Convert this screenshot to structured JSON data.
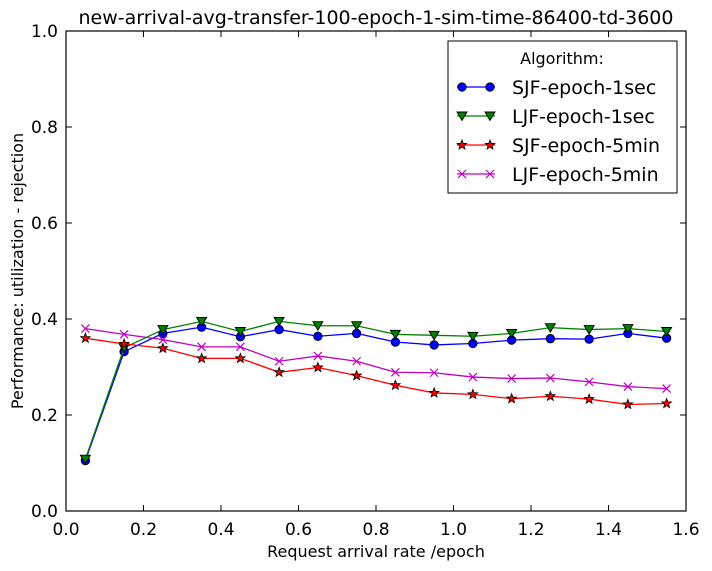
{
  "chart_data": {
    "type": "line",
    "title": "new-arrival-avg-transfer-100-epoch-1-sim-time-86400-td-3600",
    "xlabel": "Request arrival rate /epoch",
    "ylabel": "Performance: utilization - rejection",
    "xlim": [
      0.0,
      1.6
    ],
    "ylim": [
      0.0,
      1.0
    ],
    "xticks": [
      "0.0",
      "0.2",
      "0.4",
      "0.6",
      "0.8",
      "1.0",
      "1.2",
      "1.4",
      "1.6"
    ],
    "yticks": [
      "0.0",
      "0.2",
      "0.4",
      "0.6",
      "0.8",
      "1.0"
    ],
    "grid": false,
    "legend": {
      "title": "Algorithm:",
      "placement": "top-right"
    },
    "x": [
      0.05,
      0.15,
      0.25,
      0.35,
      0.45,
      0.55,
      0.65,
      0.75,
      0.85,
      0.95,
      1.05,
      1.15,
      1.25,
      1.35,
      1.45,
      1.55
    ],
    "series": [
      {
        "name": "SJF-epoch-1sec",
        "color": "#0000ff",
        "marker": "circle",
        "values": [
          0.105,
          0.332,
          0.37,
          0.383,
          0.363,
          0.378,
          0.364,
          0.37,
          0.352,
          0.346,
          0.349,
          0.356,
          0.359,
          0.358,
          0.37,
          0.36
        ]
      },
      {
        "name": "LJF-epoch-1sec",
        "color": "#007f00",
        "marker": "triangle-down",
        "values": [
          0.108,
          0.34,
          0.378,
          0.395,
          0.374,
          0.395,
          0.386,
          0.386,
          0.368,
          0.366,
          0.364,
          0.37,
          0.382,
          0.378,
          0.38,
          0.374
        ]
      },
      {
        "name": "SJF-epoch-5min",
        "color": "#ff0000",
        "marker": "star",
        "values": [
          0.36,
          0.348,
          0.339,
          0.318,
          0.318,
          0.289,
          0.299,
          0.282,
          0.262,
          0.246,
          0.243,
          0.234,
          0.239,
          0.233,
          0.222,
          0.224
        ]
      },
      {
        "name": "LJF-epoch-5min",
        "color": "#bf00bf",
        "marker": "x",
        "values": [
          0.38,
          0.368,
          0.357,
          0.342,
          0.342,
          0.312,
          0.323,
          0.312,
          0.289,
          0.288,
          0.279,
          0.276,
          0.277,
          0.269,
          0.259,
          0.255
        ]
      }
    ]
  }
}
